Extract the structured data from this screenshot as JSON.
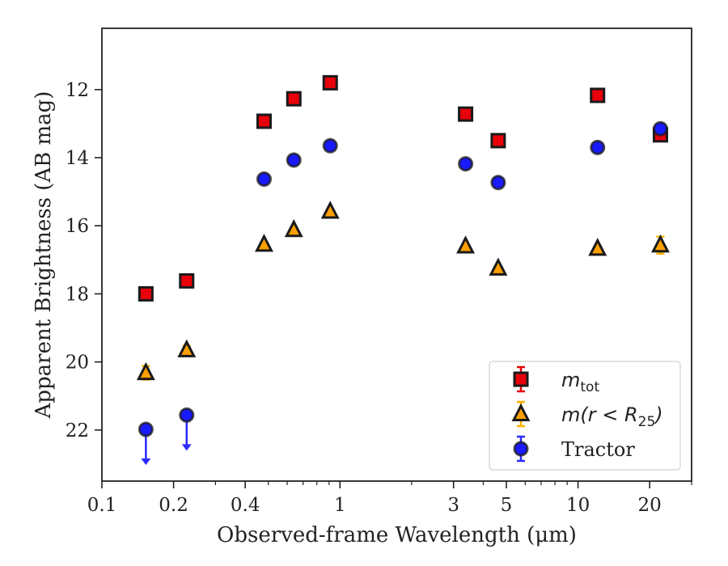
{
  "chart_data": {
    "type": "scatter",
    "title": "",
    "xlabel": "Observed-frame Wavelength (μm)",
    "ylabel": "Apparent Brightness (AB mag)",
    "xscale": "log",
    "xlim": [
      0.1,
      30
    ],
    "ylim": [
      23.5,
      10.2
    ],
    "y_inverted": true,
    "grid": false,
    "legend_position": "lower-right",
    "xticks": [
      {
        "value": 0.1,
        "label": "0.1"
      },
      {
        "value": 0.2,
        "label": "0.2"
      },
      {
        "value": 0.4,
        "label": "0.4"
      },
      {
        "value": 1,
        "label": "1"
      },
      {
        "value": 3,
        "label": "3"
      },
      {
        "value": 5,
        "label": "5"
      },
      {
        "value": 10,
        "label": "10"
      },
      {
        "value": 20,
        "label": "20"
      }
    ],
    "yticks": [
      {
        "value": 12,
        "label": "12"
      },
      {
        "value": 14,
        "label": "14"
      },
      {
        "value": 16,
        "label": "16"
      },
      {
        "value": 18,
        "label": "18"
      },
      {
        "value": 20,
        "label": "20"
      },
      {
        "value": 22,
        "label": "22"
      }
    ],
    "series": [
      {
        "key": "mtot",
        "legend_base": "m",
        "legend_sub": "tot",
        "marker": "square",
        "color": "#e8000b",
        "edge": "#1a1a1a",
        "errcolor": "#e8000b",
        "points": [
          {
            "x": 0.153,
            "y": 18.0,
            "err": 0.1
          },
          {
            "x": 0.227,
            "y": 17.62,
            "err": 0.1
          },
          {
            "x": 0.48,
            "y": 12.93,
            "err": 0.05
          },
          {
            "x": 0.64,
            "y": 12.27,
            "err": 0.05
          },
          {
            "x": 0.91,
            "y": 11.8,
            "err": 0.05
          },
          {
            "x": 3.37,
            "y": 12.72,
            "err": 0.05
          },
          {
            "x": 4.62,
            "y": 13.5,
            "err": 0.05
          },
          {
            "x": 12.08,
            "y": 12.17,
            "err": 0.05
          },
          {
            "x": 22.19,
            "y": 13.33,
            "err": 0.15
          }
        ]
      },
      {
        "key": "mr25",
        "legend_text": "m(r < R",
        "legend_sub": "25",
        "legend_close": ")",
        "marker": "triangle",
        "color": "#ff9f00",
        "edge": "#1a1a1a",
        "errcolor": "#ffb000",
        "points": [
          {
            "x": 0.153,
            "y": 20.32,
            "err": 0.2
          },
          {
            "x": 0.227,
            "y": 19.65,
            "err": 0.12
          },
          {
            "x": 0.48,
            "y": 16.55,
            "err": 0.05
          },
          {
            "x": 0.64,
            "y": 16.12,
            "err": 0.05
          },
          {
            "x": 0.91,
            "y": 15.58,
            "err": 0.05
          },
          {
            "x": 3.37,
            "y": 16.6,
            "err": 0.05
          },
          {
            "x": 4.62,
            "y": 17.25,
            "err": 0.05
          },
          {
            "x": 12.08,
            "y": 16.67,
            "err": 0.05
          },
          {
            "x": 22.19,
            "y": 16.57,
            "err": 0.25
          }
        ]
      },
      {
        "key": "tractor",
        "legend_text": "Tractor",
        "marker": "circle",
        "color": "#1a1aff",
        "edge": "#1a1a1a",
        "errcolor": "#2a2aff",
        "points": [
          {
            "x": 0.153,
            "y": 21.98,
            "err": 0.05,
            "upper_limit": true
          },
          {
            "x": 0.227,
            "y": 21.56,
            "err": 0.05,
            "upper_limit": true
          },
          {
            "x": 0.48,
            "y": 14.63,
            "err": 0.05
          },
          {
            "x": 0.64,
            "y": 14.07,
            "err": 0.05
          },
          {
            "x": 0.91,
            "y": 13.65,
            "err": 0.05
          },
          {
            "x": 3.37,
            "y": 14.18,
            "err": 0.05
          },
          {
            "x": 4.62,
            "y": 14.73,
            "err": 0.05
          },
          {
            "x": 12.08,
            "y": 13.7,
            "err": 0.05
          },
          {
            "x": 22.19,
            "y": 13.15,
            "err": 0.1
          }
        ]
      }
    ]
  }
}
